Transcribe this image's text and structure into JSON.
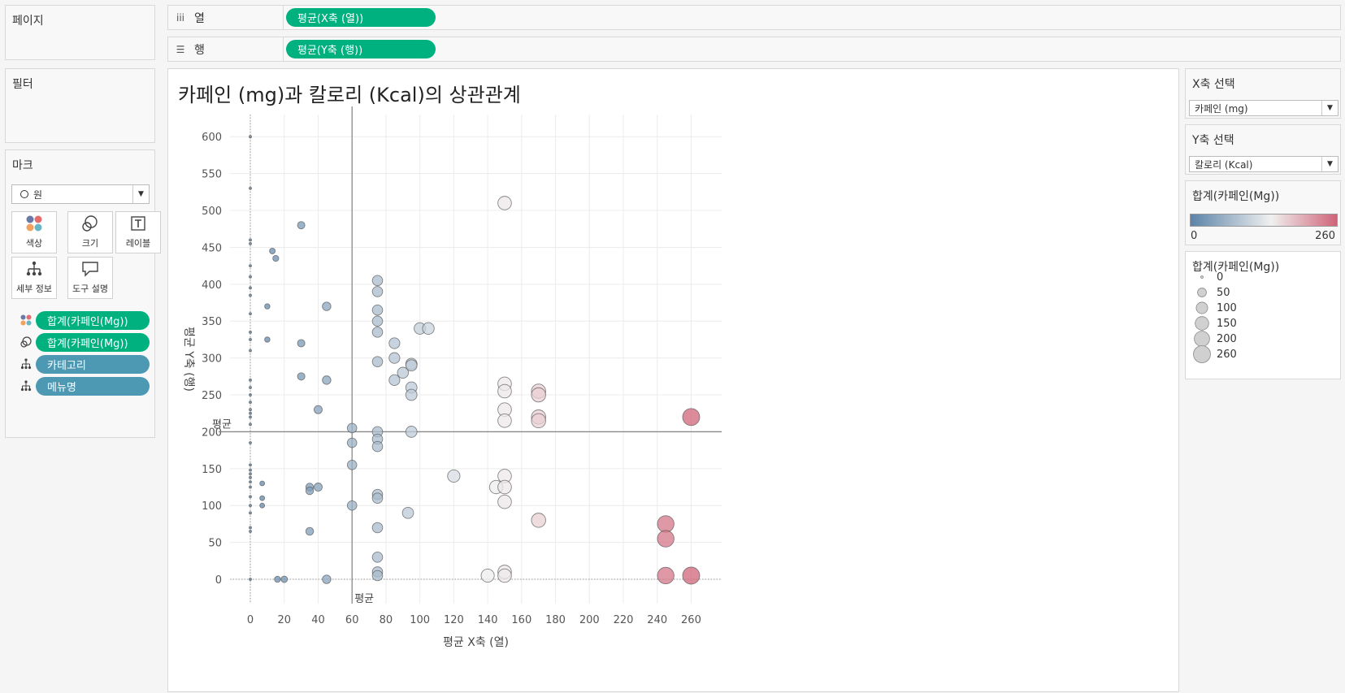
{
  "shelves": {
    "pages_title": "페이지",
    "columns_label": "열",
    "rows_label": "행",
    "columns_pill": "평균(X축 (열))",
    "rows_pill": "평균(Y축 (행))"
  },
  "filters_title": "필터",
  "marks": {
    "title": "마크",
    "type_value": "원",
    "buttons": [
      "색상",
      "크기",
      "레이블",
      "세부 정보",
      "도구 설명"
    ],
    "pills": [
      "합계(카페인(Mg))",
      "합계(카페인(Mg))",
      "카테고리",
      "메뉴명"
    ]
  },
  "chart": {
    "title": "카페인 (mg)과 칼로리 (Kcal)의 상관관계",
    "xlabel": "평균 X축 (열)",
    "ylabel": "평균 Y축 (행)",
    "ref_label_y": "평균",
    "ref_label_x": "평균"
  },
  "controls": {
    "x_title": "X축 선택",
    "x_value": "카페인 (mg)",
    "y_title": "Y축 선택",
    "y_value": "칼로리 (Kcal)"
  },
  "color_legend": {
    "title": "합계(카페인(Mg))",
    "min_label": "0",
    "max_label": "260",
    "color_low": "#5b83a8",
    "color_mid": "#f0f0f0",
    "color_high": "#d06478"
  },
  "size_legend": {
    "title": "합계(카페인(Mg))",
    "items": [
      "0",
      "50",
      "100",
      "150",
      "200",
      "260"
    ]
  },
  "chart_data": {
    "type": "scatter",
    "xlim": [
      -12,
      278
    ],
    "ylim": [
      -33,
      630
    ],
    "x_ticks": [
      0,
      20,
      40,
      60,
      80,
      100,
      120,
      140,
      160,
      180,
      200,
      220,
      240,
      260
    ],
    "y_ticks": [
      0,
      50,
      100,
      150,
      200,
      250,
      300,
      350,
      400,
      450,
      500,
      550,
      600
    ],
    "ref_x": 60,
    "ref_y": 200,
    "points": [
      [
        0,
        600
      ],
      [
        0,
        530
      ],
      [
        0,
        460
      ],
      [
        0,
        455
      ],
      [
        0,
        425
      ],
      [
        0,
        410
      ],
      [
        0,
        395
      ],
      [
        0,
        385
      ],
      [
        0,
        360
      ],
      [
        0,
        335
      ],
      [
        0,
        325
      ],
      [
        0,
        310
      ],
      [
        0,
        270
      ],
      [
        0,
        260
      ],
      [
        0,
        250
      ],
      [
        0,
        240
      ],
      [
        0,
        230
      ],
      [
        0,
        225
      ],
      [
        0,
        220
      ],
      [
        0,
        210
      ],
      [
        0,
        185
      ],
      [
        0,
        155
      ],
      [
        0,
        148
      ],
      [
        0,
        143
      ],
      [
        0,
        138
      ],
      [
        0,
        132
      ],
      [
        0,
        125
      ],
      [
        0,
        112
      ],
      [
        0,
        100
      ],
      [
        0,
        90
      ],
      [
        0,
        70
      ],
      [
        0,
        65
      ],
      [
        0,
        0
      ],
      [
        13,
        445
      ],
      [
        15,
        435
      ],
      [
        10,
        370
      ],
      [
        10,
        325
      ],
      [
        7,
        130
      ],
      [
        7,
        110
      ],
      [
        7,
        100
      ],
      [
        30,
        480
      ],
      [
        30,
        320
      ],
      [
        30,
        275
      ],
      [
        45,
        370
      ],
      [
        45,
        270
      ],
      [
        40,
        230
      ],
      [
        35,
        125
      ],
      [
        35,
        120
      ],
      [
        40,
        125
      ],
      [
        35,
        65
      ],
      [
        16,
        0
      ],
      [
        20,
        0
      ],
      [
        45,
        0
      ],
      [
        60,
        205
      ],
      [
        60,
        185
      ],
      [
        60,
        155
      ],
      [
        60,
        100
      ],
      [
        75,
        405
      ],
      [
        75,
        390
      ],
      [
        75,
        365
      ],
      [
        75,
        350
      ],
      [
        75,
        335
      ],
      [
        75,
        295
      ],
      [
        75,
        200
      ],
      [
        75,
        190
      ],
      [
        75,
        180
      ],
      [
        75,
        115
      ],
      [
        75,
        110
      ],
      [
        75,
        70
      ],
      [
        75,
        30
      ],
      [
        75,
        10
      ],
      [
        75,
        5
      ],
      [
        85,
        320
      ],
      [
        85,
        300
      ],
      [
        90,
        280
      ],
      [
        85,
        270
      ],
      [
        95,
        292
      ],
      [
        95,
        290
      ],
      [
        95,
        260
      ],
      [
        95,
        250
      ],
      [
        95,
        200
      ],
      [
        93,
        90
      ],
      [
        100,
        340
      ],
      [
        105,
        340
      ],
      [
        120,
        140
      ],
      [
        150,
        510
      ],
      [
        150,
        265
      ],
      [
        150,
        255
      ],
      [
        150,
        230
      ],
      [
        150,
        215
      ],
      [
        150,
        140
      ],
      [
        145,
        125
      ],
      [
        150,
        125
      ],
      [
        150,
        105
      ],
      [
        150,
        10
      ],
      [
        150,
        5
      ],
      [
        140,
        5
      ],
      [
        170,
        255
      ],
      [
        170,
        250
      ],
      [
        170,
        220
      ],
      [
        170,
        215
      ],
      [
        170,
        80
      ],
      [
        245,
        75
      ],
      [
        245,
        55
      ],
      [
        245,
        5
      ],
      [
        260,
        220
      ],
      [
        260,
        5
      ]
    ]
  }
}
